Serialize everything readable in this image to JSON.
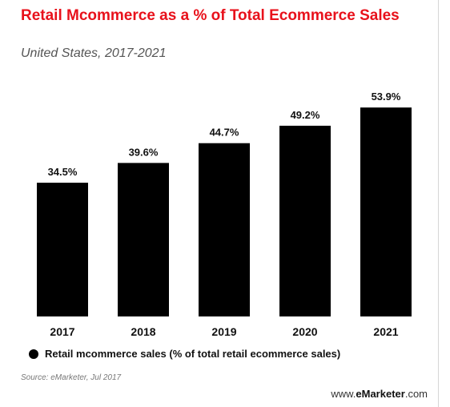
{
  "title": "Retail Mcommerce as a % of Total Ecommerce Sales",
  "subtitle": "United States, 2017-2021",
  "legend_label": "Retail mcommerce sales (% of total retail ecommerce sales)",
  "source": "Source: eMarketer, Jul 2017",
  "brand": {
    "prefix": "www.",
    "name": "eMarketer",
    "suffix": ".com"
  },
  "chart_data": {
    "type": "bar",
    "categories": [
      "2017",
      "2018",
      "2019",
      "2020",
      "2021"
    ],
    "series": [
      {
        "name": "Retail mcommerce sales (% of total retail ecommerce sales)",
        "values": [
          34.5,
          39.6,
          44.7,
          49.2,
          53.9
        ]
      }
    ],
    "value_labels": [
      "34.5%",
      "39.6%",
      "44.7%",
      "49.2%",
      "53.9%"
    ],
    "ylim": [
      0,
      62
    ],
    "grid": false,
    "bar_color": "#000000",
    "legend_position": "bottom-left"
  }
}
